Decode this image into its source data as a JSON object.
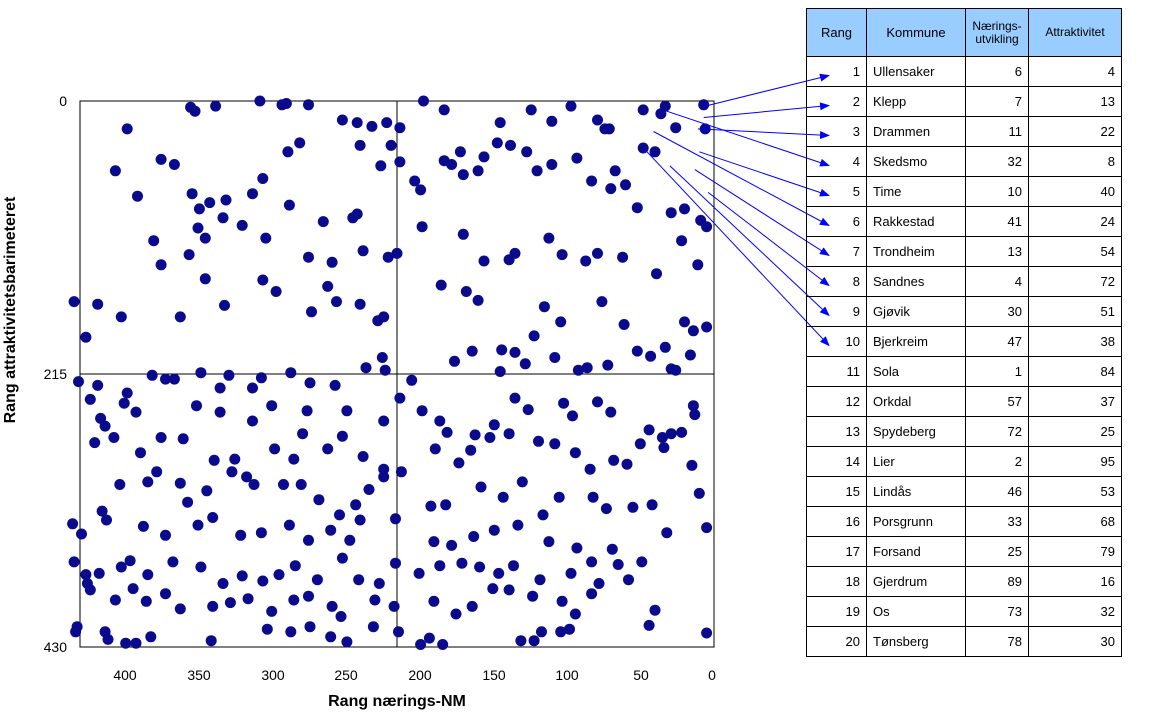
{
  "chart_data": {
    "type": "scatter",
    "xlabel": "Rang nærings-NM",
    "ylabel": "Rang attraktivitetsbarimeteret",
    "xlim": [
      430,
      0
    ],
    "ylim": [
      430,
      0
    ],
    "x_reversed": true,
    "y_reversed": true,
    "xticks": [
      400,
      350,
      300,
      250,
      200,
      150,
      100,
      50,
      0
    ],
    "yticks": [
      0,
      215,
      430
    ],
    "quadrant_lines": {
      "x": 215,
      "y": 215
    },
    "marker_color": "#0a0a8c",
    "arrow_color": "#0000ff",
    "points": [
      [
        398,
        22
      ],
      [
        355,
        5
      ],
      [
        352,
        8
      ],
      [
        338,
        4
      ],
      [
        308,
        0
      ],
      [
        293,
        3
      ],
      [
        290,
        2
      ],
      [
        275,
        3
      ],
      [
        252,
        15
      ],
      [
        242,
        17
      ],
      [
        232,
        20
      ],
      [
        222,
        17
      ],
      [
        213,
        21
      ],
      [
        197,
        0
      ],
      [
        183,
        7
      ],
      [
        145,
        17
      ],
      [
        124,
        7
      ],
      [
        110,
        16
      ],
      [
        97,
        4
      ],
      [
        79,
        15
      ],
      [
        74,
        22
      ],
      [
        71,
        22
      ],
      [
        48,
        7
      ],
      [
        36,
        10
      ],
      [
        26,
        21
      ],
      [
        6,
        22
      ],
      [
        7,
        3
      ],
      [
        33,
        4
      ],
      [
        406,
        55
      ],
      [
        391,
        75
      ],
      [
        375,
        46
      ],
      [
        366,
        50
      ],
      [
        354,
        73
      ],
      [
        342,
        80
      ],
      [
        333,
        92
      ],
      [
        350,
        100
      ],
      [
        331,
        78
      ],
      [
        306,
        61
      ],
      [
        313,
        73
      ],
      [
        289,
        40
      ],
      [
        281,
        33
      ],
      [
        288,
        82
      ],
      [
        265,
        95
      ],
      [
        240,
        35
      ],
      [
        242,
        89
      ],
      [
        226,
        51
      ],
      [
        219,
        35
      ],
      [
        213,
        48
      ],
      [
        215,
        120
      ],
      [
        203,
        63
      ],
      [
        199,
        70
      ],
      [
        183,
        47
      ],
      [
        170,
        58
      ],
      [
        178,
        50
      ],
      [
        172,
        40
      ],
      [
        156,
        44
      ],
      [
        160,
        55
      ],
      [
        147,
        33
      ],
      [
        138,
        35
      ],
      [
        127,
        40
      ],
      [
        120,
        55
      ],
      [
        110,
        50
      ],
      [
        93,
        45
      ],
      [
        83,
        63
      ],
      [
        70,
        69
      ],
      [
        67,
        55
      ],
      [
        60,
        66
      ],
      [
        52,
        84
      ],
      [
        48,
        37
      ],
      [
        40,
        40
      ],
      [
        29,
        88
      ],
      [
        20,
        85
      ],
      [
        9,
        94
      ],
      [
        5,
        99
      ],
      [
        380,
        110
      ],
      [
        349,
        85
      ],
      [
        345,
        108
      ],
      [
        356,
        121
      ],
      [
        320,
        98
      ],
      [
        304,
        108
      ],
      [
        275,
        123
      ],
      [
        259,
        127
      ],
      [
        245,
        92
      ],
      [
        238,
        118
      ],
      [
        221,
        123
      ],
      [
        198,
        99
      ],
      [
        170,
        105
      ],
      [
        156,
        126
      ],
      [
        139,
        125
      ],
      [
        135,
        120
      ],
      [
        112,
        108
      ],
      [
        103,
        121
      ],
      [
        87,
        126
      ],
      [
        79,
        120
      ],
      [
        62,
        123
      ],
      [
        39,
        136
      ],
      [
        22,
        110
      ],
      [
        11,
        129
      ],
      [
        418,
        160
      ],
      [
        434,
        158
      ],
      [
        426,
        186
      ],
      [
        402,
        170
      ],
      [
        375,
        129
      ],
      [
        362,
        170
      ],
      [
        345,
        140
      ],
      [
        332,
        161
      ],
      [
        306,
        141
      ],
      [
        297,
        150
      ],
      [
        273,
        166
      ],
      [
        262,
        146
      ],
      [
        256,
        158
      ],
      [
        240,
        160
      ],
      [
        228,
        173
      ],
      [
        224,
        170
      ],
      [
        185,
        145
      ],
      [
        168,
        150
      ],
      [
        160,
        157
      ],
      [
        144,
        196
      ],
      [
        128,
        207
      ],
      [
        122,
        185
      ],
      [
        115,
        162
      ],
      [
        104,
        174
      ],
      [
        86,
        210
      ],
      [
        76,
        158
      ],
      [
        61,
        176
      ],
      [
        43,
        201
      ],
      [
        33,
        194
      ],
      [
        20,
        174
      ],
      [
        14,
        181
      ],
      [
        5,
        178
      ],
      [
        431,
        221
      ],
      [
        418,
        224
      ],
      [
        400,
        238
      ],
      [
        381,
        216
      ],
      [
        366,
        219
      ],
      [
        348,
        214
      ],
      [
        335,
        226
      ],
      [
        329,
        216
      ],
      [
        313,
        226
      ],
      [
        307,
        218
      ],
      [
        287,
        214
      ],
      [
        274,
        222
      ],
      [
        257,
        224
      ],
      [
        236,
        210
      ],
      [
        225,
        202
      ],
      [
        223,
        212
      ],
      [
        205,
        220
      ],
      [
        176,
        205
      ],
      [
        164,
        197
      ],
      [
        145,
        213
      ],
      [
        135,
        198
      ],
      [
        108,
        202
      ],
      [
        92,
        212
      ],
      [
        72,
        208
      ],
      [
        52,
        197
      ],
      [
        29,
        211
      ],
      [
        26,
        212
      ],
      [
        16,
        200
      ],
      [
        423,
        235
      ],
      [
        413,
        256
      ],
      [
        416,
        250
      ],
      [
        398,
        230
      ],
      [
        392,
        245
      ],
      [
        372,
        219
      ],
      [
        351,
        240
      ],
      [
        335,
        245
      ],
      [
        313,
        252
      ],
      [
        300,
        240
      ],
      [
        276,
        244
      ],
      [
        249,
        244
      ],
      [
        224,
        252
      ],
      [
        213,
        234
      ],
      [
        198,
        244
      ],
      [
        186,
        252
      ],
      [
        181,
        261
      ],
      [
        162,
        263
      ],
      [
        149,
        255
      ],
      [
        135,
        234
      ],
      [
        126,
        243
      ],
      [
        102,
        238
      ],
      [
        96,
        248
      ],
      [
        79,
        237
      ],
      [
        70,
        245
      ],
      [
        44,
        259
      ],
      [
        35,
        265
      ],
      [
        14,
        240
      ],
      [
        13,
        247
      ],
      [
        420,
        269
      ],
      [
        407,
        265
      ],
      [
        389,
        277
      ],
      [
        375,
        265
      ],
      [
        360,
        266
      ],
      [
        339,
        283
      ],
      [
        325,
        282
      ],
      [
        312,
        302
      ],
      [
        298,
        274
      ],
      [
        285,
        282
      ],
      [
        279,
        262
      ],
      [
        262,
        274
      ],
      [
        252,
        264
      ],
      [
        238,
        280
      ],
      [
        224,
        290
      ],
      [
        212,
        292
      ],
      [
        189,
        274
      ],
      [
        173,
        285
      ],
      [
        165,
        275
      ],
      [
        152,
        265
      ],
      [
        139,
        262
      ],
      [
        119,
        268
      ],
      [
        108,
        270
      ],
      [
        94,
        277
      ],
      [
        84,
        290
      ],
      [
        68,
        283
      ],
      [
        59,
        286
      ],
      [
        50,
        270
      ],
      [
        34,
        273
      ],
      [
        29,
        262
      ],
      [
        22,
        261
      ],
      [
        15,
        287
      ],
      [
        403,
        302
      ],
      [
        384,
        300
      ],
      [
        378,
        292
      ],
      [
        362,
        301
      ],
      [
        357,
        316
      ],
      [
        344,
        307
      ],
      [
        327,
        292
      ],
      [
        317,
        296
      ],
      [
        292,
        302
      ],
      [
        280,
        302
      ],
      [
        268,
        314
      ],
      [
        254,
        326
      ],
      [
        243,
        318
      ],
      [
        234,
        306
      ],
      [
        224,
        296
      ],
      [
        192,
        319
      ],
      [
        182,
        318
      ],
      [
        158,
        304
      ],
      [
        143,
        312
      ],
      [
        130,
        300
      ],
      [
        116,
        326
      ],
      [
        105,
        312
      ],
      [
        82,
        312
      ],
      [
        73,
        321
      ],
      [
        55,
        320
      ],
      [
        42,
        318
      ],
      [
        10,
        309
      ],
      [
        435,
        333
      ],
      [
        429,
        341
      ],
      [
        415,
        323
      ],
      [
        412,
        330
      ],
      [
        387,
        335
      ],
      [
        372,
        342
      ],
      [
        350,
        334
      ],
      [
        340,
        328
      ],
      [
        321,
        342
      ],
      [
        307,
        340
      ],
      [
        288,
        334
      ],
      [
        275,
        346
      ],
      [
        260,
        338
      ],
      [
        247,
        346
      ],
      [
        240,
        330
      ],
      [
        216,
        329
      ],
      [
        190,
        347
      ],
      [
        178,
        350
      ],
      [
        163,
        343
      ],
      [
        149,
        338
      ],
      [
        133,
        334
      ],
      [
        112,
        347
      ],
      [
        93,
        352
      ],
      [
        69,
        353
      ],
      [
        32,
        340
      ],
      [
        5,
        336
      ],
      [
        434,
        363
      ],
      [
        426,
        373
      ],
      [
        417,
        372
      ],
      [
        402,
        367
      ],
      [
        396,
        362
      ],
      [
        384,
        373
      ],
      [
        367,
        363
      ],
      [
        348,
        367
      ],
      [
        333,
        380
      ],
      [
        320,
        374
      ],
      [
        306,
        378
      ],
      [
        295,
        373
      ],
      [
        284,
        366
      ],
      [
        269,
        377
      ],
      [
        252,
        360
      ],
      [
        241,
        377
      ],
      [
        227,
        380
      ],
      [
        216,
        364
      ],
      [
        200,
        372
      ],
      [
        186,
        366
      ],
      [
        171,
        364
      ],
      [
        159,
        367
      ],
      [
        146,
        372
      ],
      [
        136,
        366
      ],
      [
        118,
        377
      ],
      [
        97,
        372
      ],
      [
        83,
        363
      ],
      [
        65,
        365
      ],
      [
        58,
        377
      ],
      [
        49,
        363
      ],
      [
        425,
        380
      ],
      [
        423,
        385
      ],
      [
        406,
        393
      ],
      [
        394,
        384
      ],
      [
        385,
        394
      ],
      [
        372,
        388
      ],
      [
        362,
        400
      ],
      [
        340,
        398
      ],
      [
        328,
        395
      ],
      [
        316,
        392
      ],
      [
        300,
        402
      ],
      [
        285,
        393
      ],
      [
        275,
        390
      ],
      [
        259,
        398
      ],
      [
        253,
        406
      ],
      [
        230,
        393
      ],
      [
        217,
        398
      ],
      [
        190,
        394
      ],
      [
        175,
        404
      ],
      [
        164,
        398
      ],
      [
        150,
        384
      ],
      [
        139,
        385
      ],
      [
        123,
        390
      ],
      [
        103,
        394
      ],
      [
        94,
        404
      ],
      [
        83,
        388
      ],
      [
        78,
        380
      ],
      [
        40,
        401
      ],
      [
        432,
        414
      ],
      [
        433,
        418
      ],
      [
        413,
        418
      ],
      [
        411,
        424
      ],
      [
        399,
        427
      ],
      [
        392,
        427
      ],
      [
        382,
        422
      ],
      [
        341,
        425
      ],
      [
        303,
        416
      ],
      [
        287,
        418
      ],
      [
        274,
        414
      ],
      [
        260,
        422
      ],
      [
        249,
        426
      ],
      [
        231,
        414
      ],
      [
        214,
        418
      ],
      [
        199,
        428
      ],
      [
        193,
        423
      ],
      [
        184,
        428
      ],
      [
        131,
        425
      ],
      [
        122,
        425
      ],
      [
        117,
        418
      ],
      [
        104,
        418
      ],
      [
        98,
        416
      ],
      [
        44,
        413
      ],
      [
        5,
        419
      ]
    ],
    "arrows_from_table": [
      {
        "rang": 1,
        "x": 6,
        "y": 4
      },
      {
        "rang": 2,
        "x": 7,
        "y": 13
      },
      {
        "rang": 3,
        "x": 11,
        "y": 22
      },
      {
        "rang": 4,
        "x": 32,
        "y": 8
      },
      {
        "rang": 5,
        "x": 10,
        "y": 40
      },
      {
        "rang": 6,
        "x": 41,
        "y": 24
      },
      {
        "rang": 7,
        "x": 13,
        "y": 54
      },
      {
        "rang": 8,
        "x": 4,
        "y": 72
      },
      {
        "rang": 9,
        "x": 30,
        "y": 51
      },
      {
        "rang": 10,
        "x": 47,
        "y": 38
      }
    ]
  },
  "table": {
    "headers": {
      "rang": "Rang",
      "kommune": "Kommune",
      "naerings_1": "Nærings-",
      "naerings_2": "utvikling",
      "attr": "Attraktivitet"
    },
    "rows": [
      {
        "rang": "1",
        "kommune": "Ullensaker",
        "naering": "6",
        "attr": "4"
      },
      {
        "rang": "2",
        "kommune": "Klepp",
        "naering": "7",
        "attr": "13"
      },
      {
        "rang": "3",
        "kommune": "Drammen",
        "naering": "11",
        "attr": "22"
      },
      {
        "rang": "4",
        "kommune": "Skedsmo",
        "naering": "32",
        "attr": "8"
      },
      {
        "rang": "5",
        "kommune": "Time",
        "naering": "10",
        "attr": "40"
      },
      {
        "rang": "6",
        "kommune": "Rakkestad",
        "naering": "41",
        "attr": "24"
      },
      {
        "rang": "7",
        "kommune": "Trondheim",
        "naering": "13",
        "attr": "54"
      },
      {
        "rang": "8",
        "kommune": "Sandnes",
        "naering": "4",
        "attr": "72"
      },
      {
        "rang": "9",
        "kommune": "Gjøvik",
        "naering": "30",
        "attr": "51"
      },
      {
        "rang": "10",
        "kommune": "Bjerkreim",
        "naering": "47",
        "attr": "38"
      },
      {
        "rang": "11",
        "kommune": "Sola",
        "naering": "1",
        "attr": "84"
      },
      {
        "rang": "12",
        "kommune": "Orkdal",
        "naering": "57",
        "attr": "37"
      },
      {
        "rang": "13",
        "kommune": "Spydeberg",
        "naering": "72",
        "attr": "25"
      },
      {
        "rang": "14",
        "kommune": "Lier",
        "naering": "2",
        "attr": "95"
      },
      {
        "rang": "15",
        "kommune": "Lindås",
        "naering": "46",
        "attr": "53"
      },
      {
        "rang": "16",
        "kommune": "Porsgrunn",
        "naering": "33",
        "attr": "68"
      },
      {
        "rang": "17",
        "kommune": "Forsand",
        "naering": "25",
        "attr": "79"
      },
      {
        "rang": "18",
        "kommune": "Gjerdrum",
        "naering": "89",
        "attr": "16"
      },
      {
        "rang": "19",
        "kommune": "Os",
        "naering": "73",
        "attr": "32"
      },
      {
        "rang": "20",
        "kommune": "Tønsberg",
        "naering": "78",
        "attr": "30"
      }
    ]
  }
}
